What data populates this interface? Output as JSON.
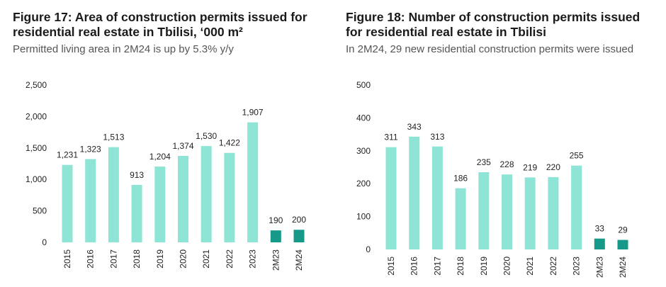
{
  "colors": {
    "base": "#8ee5d6",
    "highlight": "#17998a"
  },
  "figures": [
    {
      "title_line1": "Figure 17:  Area of construction permits issued for",
      "title_line2": "residential real estate in Tbilisi, ‘000 m²",
      "subtitle": "Permitted living area in 2M24 is up by 5.3% y/y"
    },
    {
      "title_line1": "Figure 18:  Number of construction permits issued",
      "title_line2": "for residential real estate in Tbilisi",
      "subtitle": "In 2M24, 29 new residential construction permits were issued"
    }
  ],
  "chart_data": [
    {
      "type": "bar",
      "title": "Area of construction permits issued for residential real estate in Tbilisi, ‘000 m²",
      "categories": [
        "2015",
        "2016",
        "2017",
        "2018",
        "2019",
        "2020",
        "2021",
        "2022",
        "2023",
        "2M23",
        "2M24"
      ],
      "values": [
        1231,
        1323,
        1513,
        913,
        1204,
        1374,
        1530,
        1422,
        1907,
        190,
        200
      ],
      "value_labels": [
        "1,231",
        "1,323",
        "1,513",
        "913",
        "1,204",
        "1,374",
        "1,530",
        "1,422",
        "1,907",
        "190",
        "200"
      ],
      "highlight": [
        false,
        false,
        false,
        false,
        false,
        false,
        false,
        false,
        false,
        true,
        true
      ],
      "yticks": [
        0,
        500,
        1000,
        1500,
        2000,
        2500
      ],
      "ytick_labels": [
        "0",
        "500",
        "1,000",
        "1,500",
        "2,000",
        "2,500"
      ],
      "ylim": [
        0,
        2500
      ],
      "xlabel": "",
      "ylabel": "",
      "grid": false
    },
    {
      "type": "bar",
      "title": "Number of construction permits issued for residential real estate in Tbilisi",
      "categories": [
        "2015",
        "2016",
        "2017",
        "2018",
        "2019",
        "2020",
        "2021",
        "2022",
        "2023",
        "2M23",
        "2M24"
      ],
      "values": [
        311,
        343,
        313,
        186,
        235,
        228,
        219,
        220,
        255,
        33,
        29
      ],
      "value_labels": [
        "311",
        "343",
        "313",
        "186",
        "235",
        "228",
        "219",
        "220",
        "255",
        "33",
        "29"
      ],
      "highlight": [
        false,
        false,
        false,
        false,
        false,
        false,
        false,
        false,
        false,
        true,
        true
      ],
      "yticks": [
        0,
        100,
        200,
        300,
        400,
        500
      ],
      "ytick_labels": [
        "0",
        "100",
        "200",
        "300",
        "400",
        "500"
      ],
      "ylim": [
        0,
        500
      ],
      "xlabel": "",
      "ylabel": "",
      "grid": false
    }
  ]
}
